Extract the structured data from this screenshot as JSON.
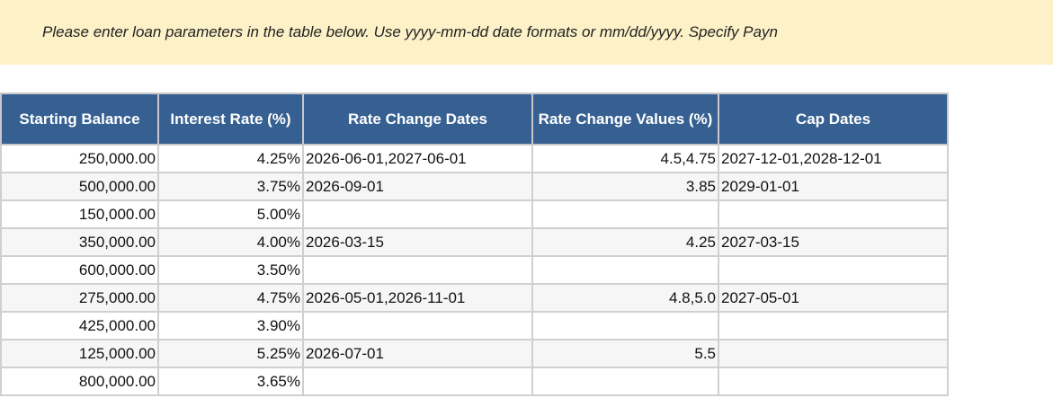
{
  "banner": {
    "text": "Please enter loan parameters in the table below. Use yyyy-mm-dd date formats or mm/dd/yyyy. Specify Payn"
  },
  "colors": {
    "header_bg": "#366092",
    "banner_bg": "#fdf1c8"
  },
  "table": {
    "headers": [
      "Starting Balance",
      "Interest Rate (%)",
      "Rate Change Dates",
      "Rate Change Values (%)",
      "Cap Dates"
    ],
    "rows": [
      [
        "250,000.00",
        "4.25%",
        "2026-06-01,2027-06-01",
        "4.5,4.75",
        "2027-12-01,2028-12-01"
      ],
      [
        "500,000.00",
        "3.75%",
        "2026-09-01",
        "3.85",
        "2029-01-01"
      ],
      [
        "150,000.00",
        "5.00%",
        "",
        "",
        ""
      ],
      [
        "350,000.00",
        "4.00%",
        "2026-03-15",
        "4.25",
        "2027-03-15"
      ],
      [
        "600,000.00",
        "3.50%",
        "",
        "",
        ""
      ],
      [
        "275,000.00",
        "4.75%",
        "2026-05-01,2026-11-01",
        "4.8,5.0",
        "2027-05-01"
      ],
      [
        "425,000.00",
        "3.90%",
        "",
        "",
        ""
      ],
      [
        "125,000.00",
        "5.25%",
        "2026-07-01",
        "5.5",
        ""
      ],
      [
        "800,000.00",
        "3.65%",
        "",
        "",
        ""
      ]
    ]
  }
}
